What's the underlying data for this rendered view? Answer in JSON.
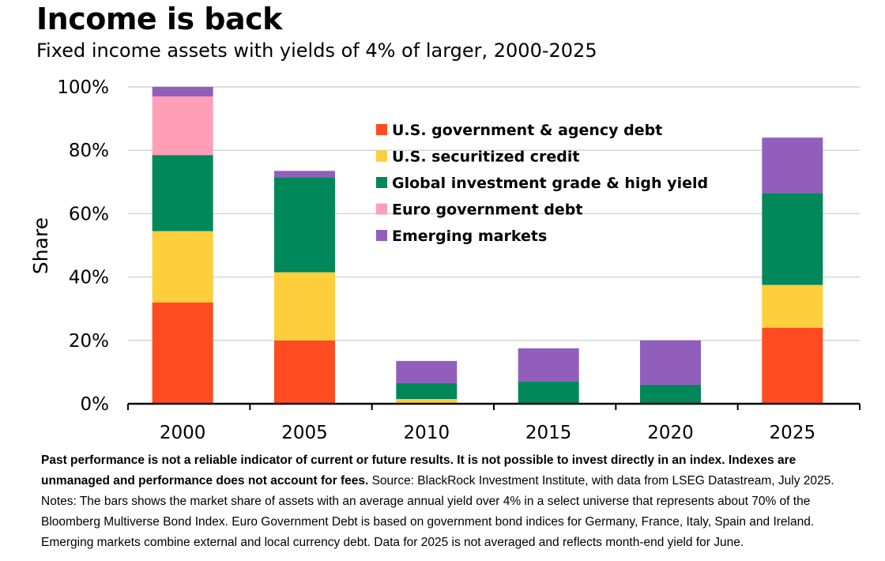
{
  "title": "Income is back",
  "subtitle": "Fixed income assets with yields of 4% of larger, 2000-2025",
  "chart_data": {
    "type": "bar",
    "stacked": true,
    "title": "Income is back",
    "subtitle": "Fixed income assets with yields of 4% of larger, 2000-2025",
    "xlabel": "",
    "ylabel": "Share",
    "ylim": [
      0,
      100
    ],
    "yticks": [
      0,
      20,
      40,
      60,
      80,
      100
    ],
    "ytick_labels": [
      "0%",
      "20%",
      "40%",
      "60%",
      "80%",
      "100%"
    ],
    "grid": true,
    "legend_position": "top-center",
    "categories": [
      "2000",
      "2005",
      "2010",
      "2015",
      "2020",
      "2025"
    ],
    "series": [
      {
        "name": "U.S. government & agency debt",
        "color": "#ff4b20",
        "values": [
          32,
          20,
          0,
          0,
          0,
          24
        ]
      },
      {
        "name": "U.S. securitized credit",
        "color": "#ffce3c",
        "values": [
          22.5,
          21.5,
          1.5,
          0,
          0,
          13.5
        ]
      },
      {
        "name": "Global investment grade & high yield",
        "color": "#00875a",
        "values": [
          24,
          30,
          5,
          7,
          6,
          29
        ]
      },
      {
        "name": "Euro government debt",
        "color": "#ff9fb7",
        "values": [
          18.5,
          0,
          0,
          0,
          0,
          0
        ]
      },
      {
        "name": "Emerging markets",
        "color": "#915fbb",
        "values": [
          3,
          2,
          7,
          10.5,
          14,
          17.5
        ]
      }
    ]
  },
  "footnote": {
    "bold_text": "Past performance is not a reliable indicator of current or future results. It is not possible to invest directly in an index. Indexes are unmanaged and performance does not account for fees.",
    "text": " Source: BlackRock Investment Institute, with data from LSEG Datastream, July 2025. Notes: The bars shows the market share of assets with an average annual yield over 4% in a select universe that represents about 70% of the Bloomberg Multiverse Bond Index. Euro Government Debt is based on government bond indices for Germany, France, Italy, Spain and Ireland. Emerging markets combine external and local currency debt. Data for 2025 is not averaged and reflects month-end yield for June."
  }
}
